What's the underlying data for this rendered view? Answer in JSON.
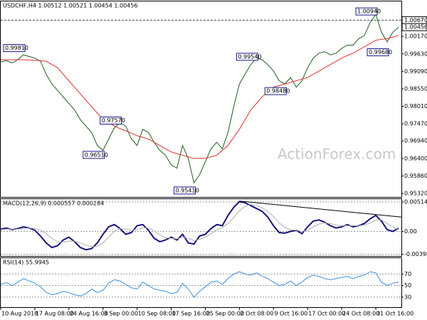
{
  "chart_data": {
    "type": "line",
    "title": "USDCHF,H4 1.00512 1.00521 1.00454 1.00456",
    "watermark": "ActionForex.com",
    "xlim": [
      0,
      70.5
    ],
    "xticks": [
      {
        "value": 0,
        "label": "10 Aug 2018"
      },
      {
        "value": 6,
        "label": "17 Aug 08:00"
      },
      {
        "value": 12,
        "label": "24 Aug 16:00"
      },
      {
        "value": 18,
        "label": "3 Sep 00:00"
      },
      {
        "value": 24,
        "label": "10 Sep 08:00"
      },
      {
        "value": 30,
        "label": "17 Sep 16:00"
      },
      {
        "value": 36,
        "label": "25 Sep 00:00"
      },
      {
        "value": 42,
        "label": "2 Oct 08:00"
      },
      {
        "value": 48,
        "label": "9 Oct 16:00"
      },
      {
        "value": 54,
        "label": "17 Oct 00:00"
      },
      {
        "value": 60,
        "label": "24 Oct 08:00"
      },
      {
        "value": 66,
        "label": "31 Oct 16:00"
      }
    ],
    "price": {
      "ylim": [
        0.9521,
        1.0125
      ],
      "yticks": [
        {
          "value": 1.0017,
          "label": "1.00170"
        },
        {
          "value": 0.9963,
          "label": "0.99630"
        },
        {
          "value": 0.9909,
          "label": "0.99090"
        },
        {
          "value": 0.9855,
          "label": "0.98550"
        },
        {
          "value": 0.9801,
          "label": "0.98010"
        },
        {
          "value": 0.9747,
          "label": "0.97470"
        },
        {
          "value": 0.9694,
          "label": "0.96940"
        },
        {
          "value": 0.964,
          "label": "0.96400"
        },
        {
          "value": 0.9586,
          "label": "0.95860"
        },
        {
          "value": 0.9532,
          "label": "0.95320"
        }
      ],
      "level": {
        "value": 1.0067,
        "label": "1.00670"
      },
      "current": {
        "value": 1.00456,
        "label": "1.00456"
      },
      "series": [
        {
          "name": "USDCHF",
          "color": "#1d5e1d",
          "values": [
            0.9938,
            0.9942,
            0.9935,
            0.9945,
            0.996,
            0.9955,
            0.995,
            0.994,
            0.99,
            0.987,
            0.985,
            0.983,
            0.981,
            0.979,
            0.976,
            0.974,
            0.972,
            0.968,
            0.9665,
            0.97,
            0.9735,
            0.975,
            0.974,
            0.97,
            0.968,
            0.973,
            0.972,
            0.969,
            0.9665,
            0.965,
            0.962,
            0.961,
            0.968,
            0.964,
            0.9565,
            0.959,
            0.963,
            0.967,
            0.969,
            0.967,
            0.972,
            0.98,
            0.987,
            0.99,
            0.993,
            0.995,
            0.9945,
            0.993,
            0.991,
            0.988,
            0.987,
            0.989,
            0.986,
            0.988,
            0.992,
            0.995,
            0.9965,
            0.997,
            0.996,
            0.9965,
            0.998,
            0.999,
            0.999,
            1.001,
            1.002,
            1.006,
            1.0085,
            1.003,
            1.0,
            1.003,
            1.00456
          ]
        },
        {
          "name": "MA",
          "color": "#e0302c",
          "values": [
            0.9945,
            0.9945,
            0.9945,
            0.9945,
            0.9945,
            0.9944,
            0.9943,
            0.9942,
            0.994,
            0.993,
            0.992,
            0.99,
            0.988,
            0.986,
            0.984,
            0.982,
            0.98,
            0.978,
            0.976,
            0.975,
            0.974,
            0.9732,
            0.9725,
            0.9718,
            0.971,
            0.9705,
            0.97,
            0.969,
            0.968,
            0.967,
            0.966,
            0.9655,
            0.965,
            0.9645,
            0.964,
            0.964,
            0.964,
            0.9645,
            0.965,
            0.9665,
            0.968,
            0.9705,
            0.973,
            0.976,
            0.979,
            0.981,
            0.983,
            0.9845,
            0.986,
            0.9865,
            0.987,
            0.9875,
            0.988,
            0.9885,
            0.989,
            0.99,
            0.991,
            0.992,
            0.993,
            0.994,
            0.995,
            0.9958,
            0.9965,
            0.9975,
            0.9985,
            0.9995,
            1.0005,
            1.0008,
            1.001,
            1.0015,
            1.002
          ]
        }
      ],
      "annotations": [
        {
          "x": 4,
          "value": 0.9981,
          "label": "0.99810"
        },
        {
          "x": 18,
          "value": 0.9651,
          "label": "0.96510"
        },
        {
          "x": 21,
          "value": 0.9757,
          "label": "0.97570"
        },
        {
          "x": 34,
          "value": 0.9541,
          "label": "0.95410"
        },
        {
          "x": 45,
          "value": 0.9954,
          "label": "0.99540"
        },
        {
          "x": 50,
          "value": 0.9848,
          "label": "0.98480"
        },
        {
          "x": 66,
          "value": 1.0094,
          "label": "1.00940"
        },
        {
          "x": 68,
          "value": 0.9968,
          "label": "0.99680"
        }
      ]
    },
    "macd": {
      "title": "MACD(12,26,9) 0.000557 0.000284",
      "ylim": [
        -0.00429,
        0.00564
      ],
      "yticks": [
        0.005145,
        {
          "value": 0,
          "label": "0.00"
        },
        -0.003989
      ],
      "trendline": {
        "x": [
          42,
          70.5
        ],
        "values": [
          0.0053,
          0.0025
        ]
      },
      "series": [
        {
          "name": "MACD",
          "color": "#15157a",
          "values": [
            0.0004,
            0.0006,
            0.0003,
            0.0005,
            0.0008,
            0.0006,
            0.0002,
            -0.0008,
            -0.002,
            -0.0028,
            -0.0025,
            -0.0015,
            -0.001,
            -0.0018,
            -0.0028,
            -0.0032,
            -0.003,
            -0.002,
            -0.0005,
            0.0008,
            0.0012,
            0.0005,
            -0.0005,
            -0.0002,
            0.001,
            0.0012,
            0.0002,
            -0.0012,
            -0.0018,
            -0.0015,
            -0.001,
            -0.0015,
            -0.0005,
            -0.002,
            -0.0022,
            -0.0008,
            -0.0005,
            0.0005,
            0.0012,
            0.001,
            0.0028,
            0.0042,
            0.0052,
            0.005,
            0.0045,
            0.004,
            0.0035,
            0.0025,
            0.001,
            -0.0002,
            -0.0003,
            0,
            0.0002,
            -0.0004,
            0.0008,
            0.0018,
            0.002,
            0.0016,
            0.001,
            0.0006,
            0.0008,
            0.0012,
            0.0008,
            0.001,
            0.0014,
            0.0022,
            0.0028,
            0.0018,
            0.0003,
            0,
            0.000557
          ]
        },
        {
          "name": "Signal",
          "color": "#b0b0b0",
          "values": [
            0.0003,
            0.0004,
            0.0004,
            0.0004,
            0.0005,
            0.0006,
            0.0005,
            0.0002,
            -0.0004,
            -0.0012,
            -0.0018,
            -0.0019,
            -0.0017,
            -0.0017,
            -0.002,
            -0.0024,
            -0.0027,
            -0.0026,
            -0.002,
            -0.001,
            0.0,
            0.0005,
            0.0004,
            0.0002,
            0.0003,
            0.0006,
            0.0006,
            0.0001,
            -0.0006,
            -0.0011,
            -0.0012,
            -0.0013,
            -0.001,
            -0.0012,
            -0.0016,
            -0.0014,
            -0.001,
            -0.0004,
            0.0003,
            0.0007,
            0.0014,
            0.0024,
            0.0036,
            0.0044,
            0.0047,
            0.0045,
            0.0041,
            0.0035,
            0.0026,
            0.0015,
            0.0007,
            0.0003,
            0.0002,
            0.0,
            0.0002,
            0.0008,
            0.0013,
            0.0015,
            0.0014,
            0.0011,
            0.001,
            0.001,
            0.001,
            0.001,
            0.0011,
            0.0015,
            0.002,
            0.002,
            0.0014,
            0.0008,
            0.000284
          ]
        }
      ]
    },
    "rsi": {
      "title": "RSI(14) 55.9945",
      "ylim": [
        12.5,
        97.5
      ],
      "yticks": [
        70,
        50,
        30
      ],
      "series": [
        {
          "name": "RSI",
          "color": "#3d8fdc",
          "values": [
            52,
            55,
            50,
            56,
            62,
            58,
            54,
            48,
            38,
            34,
            36,
            40,
            38,
            34,
            32,
            36,
            44,
            38,
            42,
            54,
            60,
            58,
            52,
            46,
            44,
            56,
            50,
            44,
            42,
            40,
            36,
            38,
            54,
            44,
            30,
            40,
            48,
            56,
            58,
            52,
            62,
            70,
            74,
            70,
            68,
            72,
            66,
            62,
            56,
            50,
            52,
            58,
            50,
            56,
            64,
            68,
            66,
            62,
            60,
            62,
            64,
            66,
            62,
            66,
            68,
            74,
            72,
            56,
            50,
            54,
            55.9945
          ]
        }
      ]
    }
  }
}
